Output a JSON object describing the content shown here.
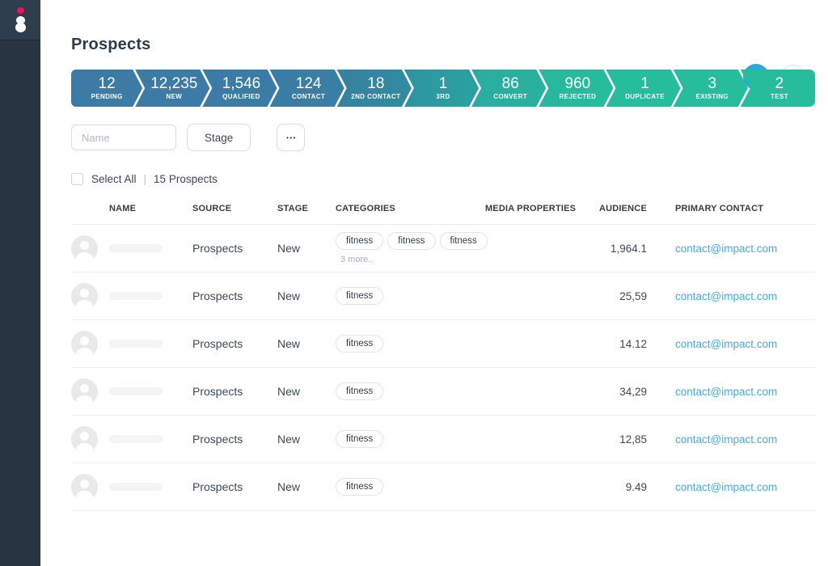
{
  "colors": {
    "sidebar_bg": "#273442",
    "sidebar_top_bg": "#2f3e4d",
    "logo_dot": "#ea1551",
    "add_button": "#29a9e1",
    "link": "#43ade4",
    "funnel_start": "#3b7ba6",
    "funnel_end": "#26bd9c"
  },
  "header": {
    "title": "Prospects",
    "add_label": "+",
    "more_dots": "•••"
  },
  "funnel": {
    "stages": [
      {
        "count": "12",
        "label": "PENDING",
        "from": "#3b7ba6",
        "to": "#3b7ba6"
      },
      {
        "count": "12,235",
        "label": "NEW",
        "from": "#3b7ba6",
        "to": "#3b7ba6"
      },
      {
        "count": "1,546",
        "label": "QUALIFIED",
        "from": "#3b7ba6",
        "to": "#3b7ca6"
      },
      {
        "count": "124",
        "label": "CONTACT",
        "from": "#3a7ca5",
        "to": "#397fa3"
      },
      {
        "count": "18",
        "label": "2ND CONTACT",
        "from": "#36819f",
        "to": "#2f8ca0"
      },
      {
        "count": "1",
        "label": "3RD",
        "from": "#2d94a1",
        "to": "#2aa2a0"
      },
      {
        "count": "86",
        "label": "CONVERT",
        "from": "#29aca0",
        "to": "#28b39e"
      },
      {
        "count": "960",
        "label": "REJECTED",
        "from": "#27b89d",
        "to": "#26bc9c"
      },
      {
        "count": "1",
        "label": "DUPLICATE",
        "from": "#26bd9c",
        "to": "#26bd9c"
      },
      {
        "count": "3",
        "label": "EXISTING",
        "from": "#26bd9c",
        "to": "#26bd9c"
      },
      {
        "count": "2",
        "label": "TEST",
        "from": "#26bd9c",
        "to": "#26bd9c"
      }
    ]
  },
  "filters": {
    "name_placeholder": "Name",
    "stage_label": "Stage",
    "more_label": "•••"
  },
  "selection": {
    "select_all": "Select All",
    "divider": "|",
    "count": "15 Prospects"
  },
  "table": {
    "columns": [
      "NAME",
      "SOURCE",
      "STAGE",
      "CATEGORIES",
      "MEDIA PROPERTIES",
      "AUDIENCE",
      "PRIMARY CONTACT"
    ],
    "rows": [
      {
        "source": "Prospects",
        "stage": "New",
        "categories": [
          "fitness",
          "fitness",
          "fitness"
        ],
        "more": "3 more..",
        "media_properties": "",
        "audience": "1,964.1",
        "contact": "contact@impact.com"
      },
      {
        "source": "Prospects",
        "stage": "New",
        "categories": [
          "fitness"
        ],
        "media_properties": "",
        "audience": "25,59",
        "contact": "contact@impact.com"
      },
      {
        "source": "Prospects",
        "stage": "New",
        "categories": [
          "fitness"
        ],
        "media_properties": "",
        "audience": "14.12",
        "contact": "contact@impact.com"
      },
      {
        "source": "Prospects",
        "stage": "New",
        "categories": [
          "fitness"
        ],
        "media_properties": "",
        "audience": "34,29",
        "contact": "contact@impact.com"
      },
      {
        "source": "Prospects",
        "stage": "New",
        "categories": [
          "fitness"
        ],
        "media_properties": "",
        "audience": "12,85",
        "contact": "contact@impact.com"
      },
      {
        "source": "Prospects",
        "stage": "New",
        "categories": [
          "fitness"
        ],
        "media_properties": "",
        "audience": "9.49",
        "contact": "contact@impact.com"
      }
    ]
  }
}
